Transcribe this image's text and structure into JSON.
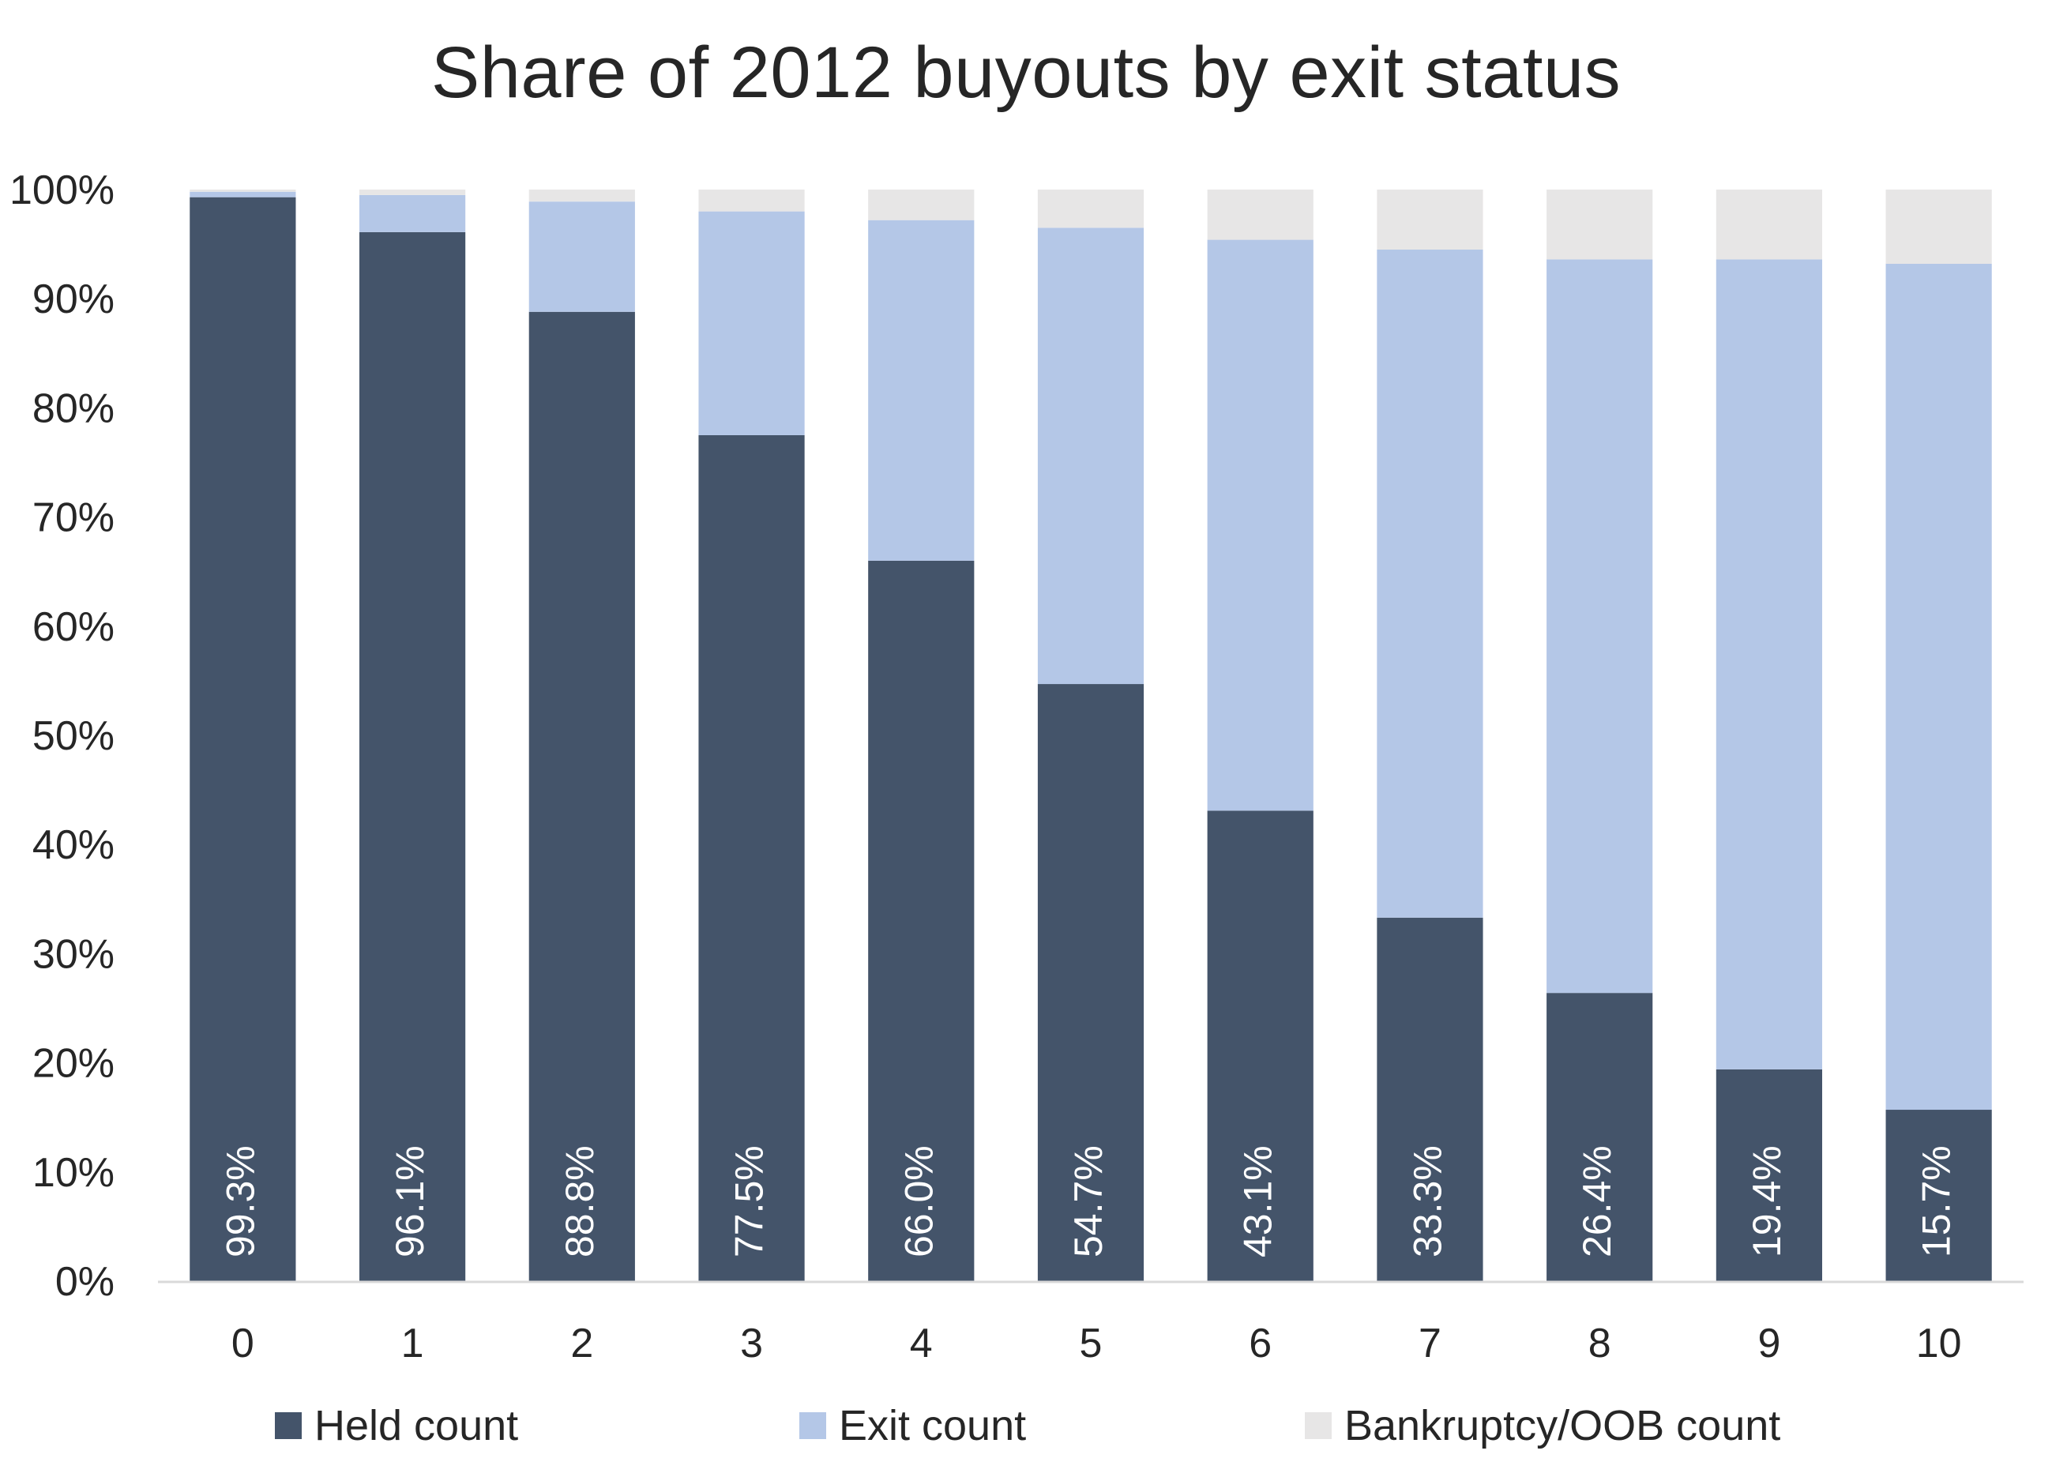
{
  "chart_data": {
    "type": "bar",
    "stacked": true,
    "normalized": true,
    "title": "Share of 2012 buyouts by exit status",
    "xlabel": "",
    "ylabel": "",
    "categories": [
      "0",
      "1",
      "2",
      "3",
      "4",
      "5",
      "6",
      "7",
      "8",
      "9",
      "10"
    ],
    "y_ticks": [
      "0%",
      "10%",
      "20%",
      "30%",
      "40%",
      "50%",
      "60%",
      "70%",
      "80%",
      "90%",
      "100%"
    ],
    "ylim": [
      0,
      100
    ],
    "grid": false,
    "legend_position": "bottom",
    "series": [
      {
        "name": "Held count",
        "color": "#44546a",
        "values": [
          99.3,
          96.1,
          88.8,
          77.5,
          66.0,
          54.7,
          43.1,
          33.3,
          26.4,
          19.4,
          15.7
        ],
        "labels": [
          "99.3%",
          "96.1%",
          "88.8%",
          "77.5%",
          "66.0%",
          "54.7%",
          "43.1%",
          "33.3%",
          "26.4%",
          "19.4%",
          "15.7%"
        ]
      },
      {
        "name": "Exit count",
        "color": "#b4c7e7",
        "values": [
          0.5,
          3.4,
          10.1,
          20.5,
          31.2,
          41.8,
          52.3,
          61.2,
          67.2,
          74.2,
          77.5
        ]
      },
      {
        "name": "Bankruptcy/OOB count",
        "color": "#e7e6e6",
        "values": [
          0.2,
          0.5,
          1.1,
          2.0,
          2.8,
          3.5,
          4.6,
          5.5,
          6.4,
          6.4,
          6.8
        ]
      }
    ]
  }
}
